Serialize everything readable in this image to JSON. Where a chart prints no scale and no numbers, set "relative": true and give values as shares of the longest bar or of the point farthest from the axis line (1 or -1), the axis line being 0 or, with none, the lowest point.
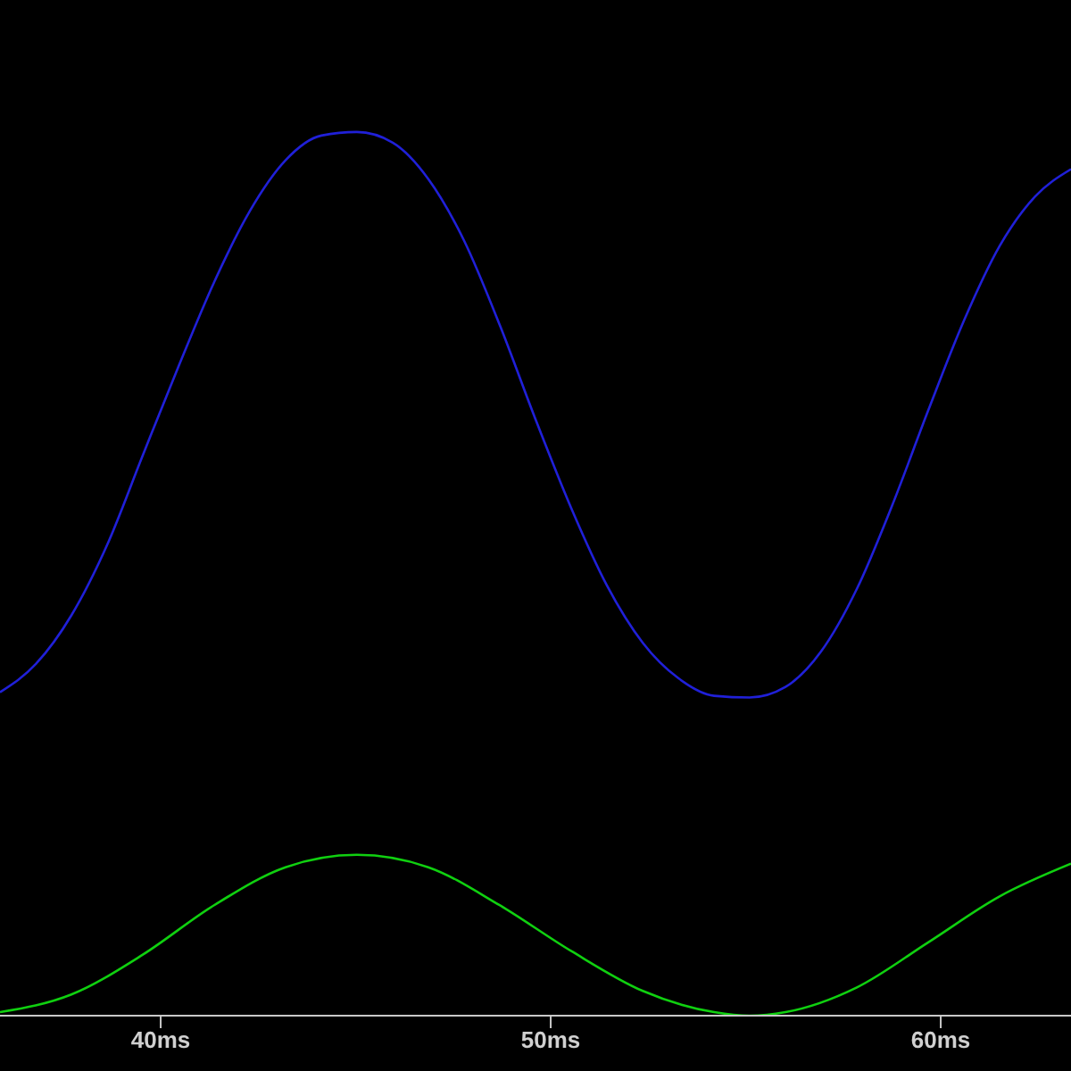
{
  "chart_data": {
    "type": "line",
    "relative": true,
    "xlim": [
      35.88,
      63.34
    ],
    "xticks": [
      {
        "value": 40,
        "label": "40ms"
      },
      {
        "value": 50,
        "label": "50ms"
      },
      {
        "value": 60,
        "label": "60ms"
      }
    ],
    "grid": false,
    "legend": false,
    "marker": "none",
    "line_style": "solid",
    "tick_labels": "x",
    "series": [
      {
        "color": "#2020d8",
        "x": [
          35.88,
          36.8,
          37.71,
          38.63,
          39.54,
          40.46,
          41.37,
          42.29,
          43.2,
          44.12,
          45.03,
          45.95,
          46.86,
          47.78,
          48.69,
          49.61,
          50.53,
          51.44,
          52.36,
          53.27,
          54.19,
          55.1,
          56.02,
          56.93,
          57.85,
          58.76,
          59.68,
          60.59,
          61.51,
          62.42,
          63.34
        ],
        "values": [
          0.366,
          0.398,
          0.453,
          0.533,
          0.634,
          0.735,
          0.83,
          0.911,
          0.968,
          0.996,
          1,
          0.988,
          0.947,
          0.877,
          0.782,
          0.675,
          0.574,
          0.487,
          0.422,
          0.382,
          0.362,
          0.36,
          0.372,
          0.412,
          0.483,
          0.578,
          0.685,
          0.786,
          0.871,
          0.927,
          0.958
        ]
      },
      {
        "color": "#10d010",
        "x": [
          35.88,
          37.71,
          39.54,
          41.37,
          43.2,
          45.03,
          46.86,
          48.69,
          50.53,
          52.36,
          54.19,
          55.1,
          56.02,
          57.85,
          59.68,
          61.51,
          63.34
        ],
        "values": [
          0.004,
          0.024,
          0.069,
          0.125,
          0.168,
          0.182,
          0.168,
          0.125,
          0.073,
          0.028,
          0.004,
          0,
          0.004,
          0.032,
          0.083,
          0.135,
          0.172
        ]
      }
    ]
  }
}
